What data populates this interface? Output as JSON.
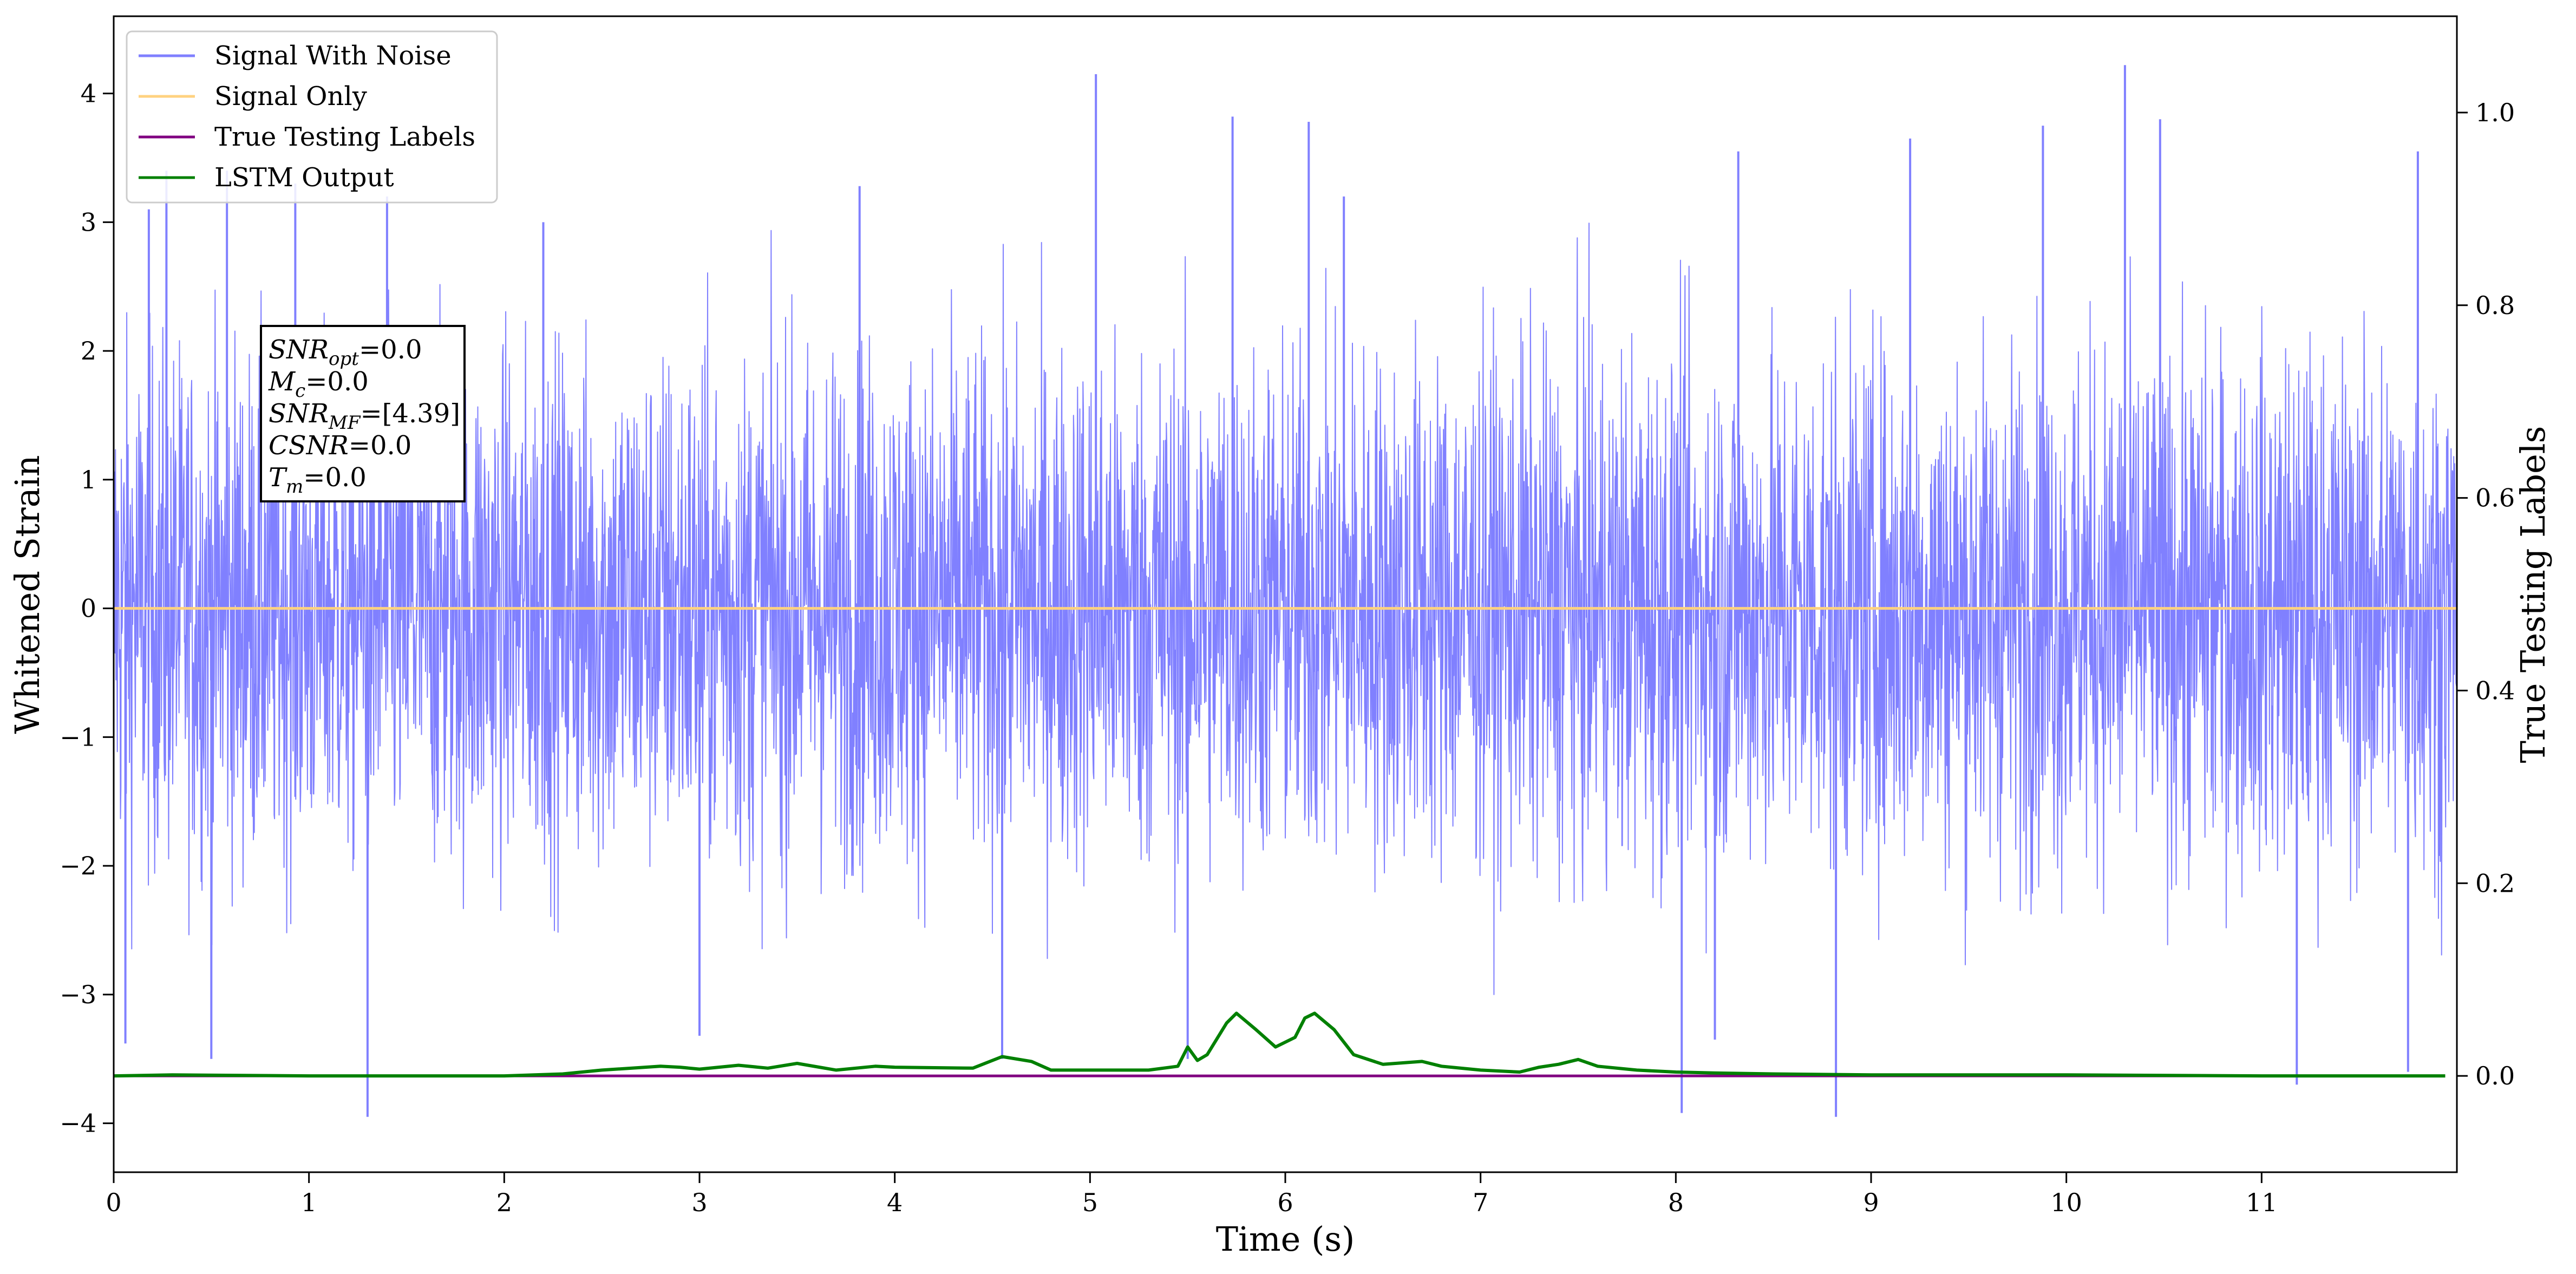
{
  "chart_data": {
    "type": "line",
    "title": "",
    "xlabel": "Time (s)",
    "ylabel": "Whitened Strain",
    "ylabel_right": "True Testing Labels",
    "xlim": [
      0,
      12
    ],
    "ylim": [
      -4.38,
      4.6
    ],
    "ylim_right": [
      -0.1,
      1.1
    ],
    "x_ticks": [
      0,
      1,
      2,
      3,
      4,
      5,
      6,
      7,
      8,
      9,
      10,
      11
    ],
    "x_tick_labels": [
      "0",
      "1",
      "2",
      "3",
      "4",
      "5",
      "6",
      "7",
      "8",
      "9",
      "10",
      "11"
    ],
    "y_ticks": [
      4,
      3,
      2,
      1,
      0,
      -1,
      -2,
      -3,
      -4
    ],
    "y_tick_labels": [
      "4",
      "3",
      "2",
      "1",
      "0",
      "−1",
      "−2",
      "−3",
      "−4"
    ],
    "y_right_ticks": [
      1.0,
      0.8,
      0.6,
      0.4,
      0.2,
      0.0
    ],
    "y_right_tick_labels": [
      "1.0",
      "0.8",
      "0.6",
      "0.4",
      "0.2",
      "0.0"
    ],
    "legend": {
      "placement": "top-left",
      "entries": [
        {
          "name": "Signal With Noise",
          "color": "#8080ff"
        },
        {
          "name": "Signal Only",
          "color": "#ffd280"
        },
        {
          "name": "True Testing Labels",
          "color": "#800080"
        },
        {
          "name": "LSTM Output",
          "color": "#008000"
        }
      ]
    },
    "annotation": {
      "lines": [
        {
          "sym": "SNR",
          "sub": "opt",
          "rest": "=0.0"
        },
        {
          "sym": "M",
          "sub": "c",
          "rest": "=0.0"
        },
        {
          "sym": "SNR",
          "sub": "MF",
          "rest": "=[4.39]"
        },
        {
          "sym": "CSNR",
          "sub": "",
          "rest": "=0.0"
        },
        {
          "sym": "T",
          "sub": "m",
          "rest": "=0.0"
        }
      ]
    },
    "series": [
      {
        "name": "Signal With Noise",
        "axis": "left",
        "color": "#8080ff",
        "description_values": "dense Gaussian-like noise, sampled over 0 to 12 s",
        "x_range": [
          0,
          12
        ],
        "spikes": [
          {
            "x": 0.06,
            "y": -3.38
          },
          {
            "x": 0.18,
            "y": 3.1
          },
          {
            "x": 0.27,
            "y": 3.4
          },
          {
            "x": 0.5,
            "y": -3.5
          },
          {
            "x": 0.58,
            "y": 3.4
          },
          {
            "x": 0.93,
            "y": 3.3
          },
          {
            "x": 1.3,
            "y": -3.95
          },
          {
            "x": 1.4,
            "y": 3.2
          },
          {
            "x": 2.2,
            "y": 3.0
          },
          {
            "x": 3.0,
            "y": -3.32
          },
          {
            "x": 3.82,
            "y": 3.28
          },
          {
            "x": 4.55,
            "y": -3.5
          },
          {
            "x": 5.03,
            "y": 4.15
          },
          {
            "x": 5.5,
            "y": -3.5
          },
          {
            "x": 5.73,
            "y": 3.82
          },
          {
            "x": 6.12,
            "y": 3.78
          },
          {
            "x": 6.3,
            "y": 3.2
          },
          {
            "x": 8.03,
            "y": -3.92
          },
          {
            "x": 8.2,
            "y": -3.35
          },
          {
            "x": 8.32,
            "y": 3.55
          },
          {
            "x": 8.82,
            "y": -3.95
          },
          {
            "x": 9.2,
            "y": 3.65
          },
          {
            "x": 9.88,
            "y": 3.75
          },
          {
            "x": 10.3,
            "y": 4.22
          },
          {
            "x": 10.48,
            "y": 3.8
          },
          {
            "x": 11.18,
            "y": -3.7
          },
          {
            "x": 11.75,
            "y": -3.6
          },
          {
            "x": 11.8,
            "y": 3.55
          }
        ]
      },
      {
        "name": "Signal Only",
        "axis": "left",
        "color": "#ffd280",
        "x": [
          0,
          12
        ],
        "y": [
          0,
          0
        ]
      },
      {
        "name": "True Testing Labels",
        "axis": "right",
        "color": "#800080",
        "x": [
          0,
          11.94
        ],
        "y": [
          0,
          0
        ]
      },
      {
        "name": "LSTM Output",
        "axis": "right",
        "color": "#008000",
        "x": [
          0,
          0.3,
          1.0,
          2.0,
          2.3,
          2.5,
          2.8,
          2.9,
          3.0,
          3.2,
          3.35,
          3.5,
          3.7,
          3.9,
          4.0,
          4.4,
          4.55,
          4.7,
          4.8,
          5.0,
          5.3,
          5.45,
          5.5,
          5.55,
          5.6,
          5.7,
          5.75,
          5.85,
          5.95,
          6.05,
          6.1,
          6.15,
          6.25,
          6.35,
          6.5,
          6.7,
          6.8,
          7.0,
          7.2,
          7.3,
          7.4,
          7.5,
          7.6,
          7.8,
          8.0,
          8.2,
          8.5,
          9.0,
          9.5,
          10.0,
          11.0,
          11.94
        ],
        "y": [
          0.0,
          0.001,
          0.0,
          0.0,
          0.002,
          0.006,
          0.01,
          0.009,
          0.007,
          0.011,
          0.008,
          0.013,
          0.006,
          0.01,
          0.009,
          0.008,
          0.02,
          0.015,
          0.006,
          0.006,
          0.006,
          0.01,
          0.03,
          0.016,
          0.022,
          0.055,
          0.065,
          0.048,
          0.03,
          0.04,
          0.06,
          0.065,
          0.048,
          0.022,
          0.012,
          0.015,
          0.01,
          0.006,
          0.004,
          0.009,
          0.012,
          0.017,
          0.01,
          0.006,
          0.004,
          0.003,
          0.002,
          0.001,
          0.001,
          0.001,
          0.0,
          0.0
        ]
      }
    ]
  }
}
